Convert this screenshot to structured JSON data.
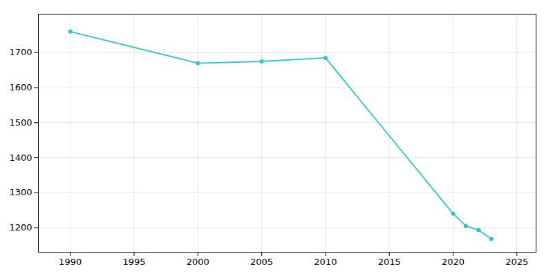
{
  "chart_data": {
    "type": "line",
    "x": [
      1990,
      2000,
      2005,
      2010,
      2020,
      2021,
      2022,
      2023
    ],
    "values": [
      1760,
      1670,
      1675,
      1685,
      1240,
      1205,
      1193,
      1168
    ],
    "color": "#2DC5C5",
    "marker": "circle",
    "xlim": [
      1987.5,
      2026.5
    ],
    "ylim": [
      1130,
      1810
    ],
    "xticks": [
      1990,
      1995,
      2000,
      2005,
      2010,
      2015,
      2020,
      2025
    ],
    "yticks": [
      1200,
      1300,
      1400,
      1500,
      1600,
      1700
    ],
    "grid": true
  }
}
